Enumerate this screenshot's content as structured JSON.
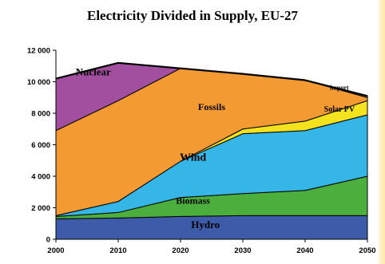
{
  "chart_data": {
    "type": "area",
    "title": "Electricity Divided in Supply, EU-27",
    "x": [
      2000,
      2010,
      2020,
      2030,
      2040,
      2050
    ],
    "ylim": [
      0,
      12000
    ],
    "yticks": [
      0,
      2000,
      4000,
      6000,
      8000,
      10000,
      12000
    ],
    "ytick_labels": [
      "0",
      "2 000",
      "4 000",
      "6 000",
      "8 000",
      "10 000",
      "12 000"
    ],
    "xtick_labels": [
      "2000",
      "2010",
      "2020",
      "2030",
      "2040",
      "2050"
    ],
    "grid": false,
    "series": [
      {
        "name": "Hydro",
        "values": [
          1300,
          1350,
          1450,
          1500,
          1500,
          1500
        ],
        "color": "#3d5ba8"
      },
      {
        "name": "Biomass",
        "values": [
          150,
          350,
          1200,
          1400,
          1600,
          2500
        ],
        "color": "#4cae3c"
      },
      {
        "name": "Wind",
        "values": [
          50,
          700,
          2300,
          3800,
          3800,
          3900
        ],
        "color": "#36b6e6"
      },
      {
        "name": "Solar PV",
        "values": [
          0,
          0,
          0,
          300,
          600,
          900
        ],
        "color": "#f5e21e"
      },
      {
        "name": "Fossils",
        "values": [
          5400,
          6400,
          5900,
          3500,
          2600,
          200
        ],
        "color": "#f39a33"
      },
      {
        "name": "Nuclear",
        "values": [
          3300,
          2400,
          0,
          0,
          0,
          0
        ],
        "color": "#a24fa0"
      },
      {
        "name": "import",
        "values": [
          0,
          0,
          0,
          0,
          0,
          100
        ],
        "color": "#ffffff"
      }
    ]
  }
}
